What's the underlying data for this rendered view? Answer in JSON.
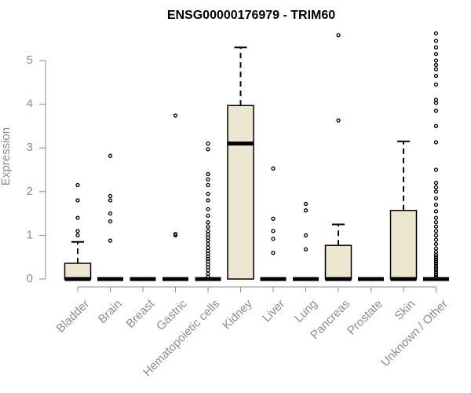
{
  "chart_data": {
    "type": "box",
    "title": "ENSG00000176979 - TRIM60",
    "xlabel": "",
    "ylabel": "Expression",
    "ylim": [
      0,
      5.6
    ],
    "y_ticks": [
      0,
      1,
      2,
      3,
      4,
      5
    ],
    "colors": {
      "box_fill": "#ede6cf",
      "axis": "#8c8c8c",
      "stroke": "#000000"
    },
    "categories": [
      "Bladder",
      "Brain",
      "Breast",
      "Gastric",
      "Hematopoietic cells",
      "Kidney",
      "Liver",
      "Lung",
      "Pancreas",
      "Prostate",
      "Skin",
      "Unknown / Other"
    ],
    "boxes": [
      {
        "q1": 0,
        "median": 0,
        "q3": 0.36,
        "whisker_low": 0,
        "whisker_high": 0.85,
        "outliers": [
          1.0,
          1.1,
          1.4,
          1.8,
          2.15
        ]
      },
      {
        "q1": 0,
        "median": 0,
        "q3": 0,
        "whisker_low": 0,
        "whisker_high": 0,
        "outliers": [
          0.88,
          1.32,
          1.5,
          1.8,
          1.9,
          2.82
        ]
      },
      {
        "q1": 0,
        "median": 0,
        "q3": 0,
        "whisker_low": 0,
        "whisker_high": 0,
        "outliers": []
      },
      {
        "q1": 0,
        "median": 0,
        "q3": 0,
        "whisker_low": 0,
        "whisker_high": 0,
        "outliers": [
          1.0,
          1.03,
          3.74
        ]
      },
      {
        "q1": 0,
        "median": 0,
        "q3": 0,
        "whisker_low": 0,
        "whisker_high": 0,
        "outliers": [
          0.05,
          0.12,
          0.2,
          0.27,
          0.33,
          0.4,
          0.46,
          0.52,
          0.58,
          0.64,
          0.72,
          0.8,
          0.88,
          0.95,
          1.02,
          1.1,
          1.2,
          1.3,
          1.45,
          1.6,
          1.8,
          1.95,
          2.15,
          2.28,
          2.4,
          2.97,
          3.1
        ]
      },
      {
        "q1": 0,
        "median": 3.1,
        "q3": 3.97,
        "whisker_low": 0,
        "whisker_high": 5.3,
        "outliers": []
      },
      {
        "q1": 0,
        "median": 0,
        "q3": 0,
        "whisker_low": 0,
        "whisker_high": 0,
        "outliers": [
          0.6,
          0.92,
          1.1,
          1.38,
          2.53
        ]
      },
      {
        "q1": 0,
        "median": 0,
        "q3": 0,
        "whisker_low": 0,
        "whisker_high": 0,
        "outliers": [
          0.68,
          1.0,
          1.57,
          1.72
        ]
      },
      {
        "q1": 0,
        "median": 0,
        "q3": 0.77,
        "whisker_low": 0,
        "whisker_high": 1.25,
        "outliers": [
          3.63,
          5.58
        ]
      },
      {
        "q1": 0,
        "median": 0,
        "q3": 0,
        "whisker_low": 0,
        "whisker_high": 0,
        "outliers": []
      },
      {
        "q1": 0,
        "median": 0,
        "q3": 1.57,
        "whisker_low": 0,
        "whisker_high": 3.15,
        "outliers": []
      },
      {
        "q1": 0,
        "median": 0,
        "q3": 0,
        "whisker_low": 0,
        "whisker_high": 0,
        "outliers": [
          0.05,
          0.1,
          0.15,
          0.2,
          0.25,
          0.3,
          0.35,
          0.4,
          0.45,
          0.5,
          0.55,
          0.62,
          0.7,
          0.8,
          0.9,
          1.0,
          1.1,
          1.2,
          1.3,
          1.4,
          1.55,
          1.7,
          1.85,
          2.0,
          2.1,
          2.2,
          2.5,
          3.13,
          3.5,
          3.85,
          4.03,
          4.1,
          4.45,
          4.65,
          4.8,
          4.9,
          5.0,
          5.15,
          5.3,
          5.45,
          5.62
        ]
      }
    ],
    "grid": false,
    "legend": "none"
  }
}
